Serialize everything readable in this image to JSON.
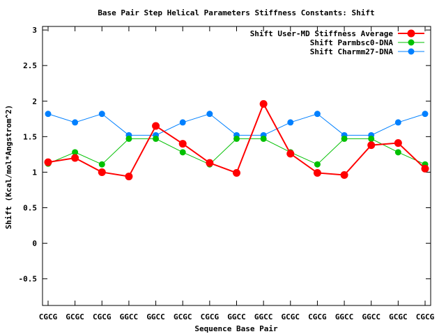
{
  "chart_data": {
    "type": "line",
    "title": "Base Pair Step Helical Parameters Stiffness Constants: Shift",
    "xlabel": "Sequence Base Pair",
    "ylabel": "Shift (Kcal/mol*Angstrom^2)",
    "ylim": [
      -0.875,
      3.05
    ],
    "yticks": [
      -0.5,
      0,
      0.5,
      1,
      1.5,
      2,
      2.5,
      3
    ],
    "ytick_labels": [
      "-0.5",
      "0",
      "0.5",
      "1",
      "1.5",
      "2",
      "2.5",
      "3"
    ],
    "categories": [
      "CGCG",
      "GCGC",
      "CGCG",
      "GGCC",
      "GGCC",
      "GCGC",
      "CGCG",
      "GGCC",
      "GGCC",
      "GCGC",
      "CGCG",
      "GGCC",
      "GGCC",
      "GCGC",
      "CGCG"
    ],
    "grid": false,
    "legend_position": "top-right",
    "series": [
      {
        "name": "Shift User-MD Stiffness Average",
        "color": "#ff0000",
        "values": [
          1.14,
          1.2,
          1.0,
          0.94,
          1.65,
          1.4,
          1.13,
          0.99,
          1.96,
          1.26,
          0.99,
          0.96,
          1.38,
          1.41,
          1.05
        ]
      },
      {
        "name": "Shift Parmbsc0-DNA",
        "color": "#00c000",
        "values": [
          1.12,
          1.28,
          1.11,
          1.47,
          1.47,
          1.28,
          1.11,
          1.47,
          1.47,
          1.28,
          1.11,
          1.47,
          1.47,
          1.28,
          1.11
        ]
      },
      {
        "name": "Shift Charmm27-DNA",
        "color": "#0080ff",
        "values": [
          1.82,
          1.7,
          1.82,
          1.52,
          1.52,
          1.7,
          1.82,
          1.52,
          1.52,
          1.7,
          1.82,
          1.52,
          1.52,
          1.7,
          1.82
        ]
      }
    ]
  }
}
